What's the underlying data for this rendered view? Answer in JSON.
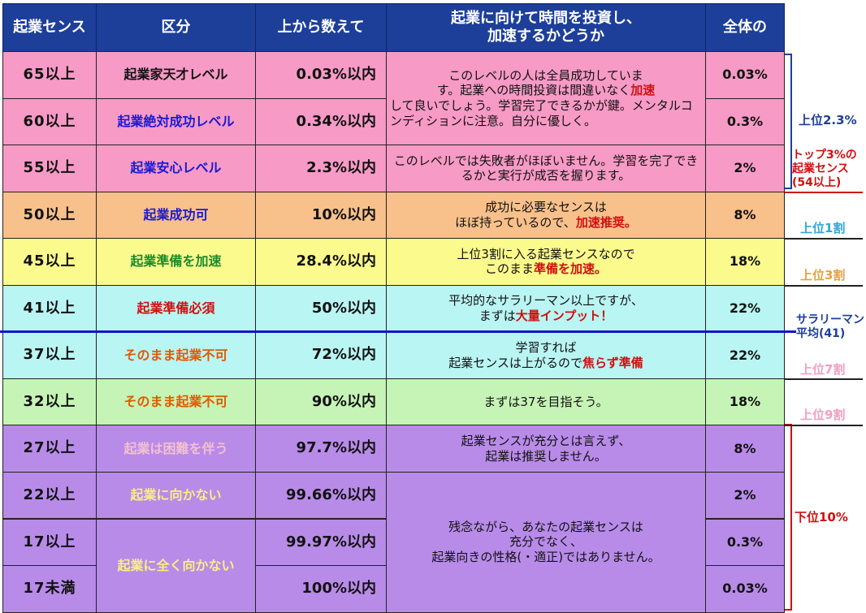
{
  "headers": [
    "起業センス",
    "区分",
    "上から数えて",
    "起業に向けて時間を投資し、\n加速するかどうか",
    "全体の"
  ],
  "rows": [
    {
      "score": "65以上",
      "class": "起業家天才レベル",
      "pct": "0.03%以内",
      "share": "0.03%"
    },
    {
      "score": "60以上",
      "class": "起業絶対成功レベル",
      "pct": "0.34%以内",
      "share": "0.3%"
    },
    {
      "score": "55以上",
      "class": "起業安心レベル",
      "pct": "2.3%以内",
      "share": "2%"
    },
    {
      "score": "50以上",
      "class": "起業成功可",
      "pct": "10%以内",
      "share": "8%"
    },
    {
      "score": "45以上",
      "class": "起業準備を加速",
      "pct": "28.4%以内",
      "share": "18%"
    },
    {
      "score": "41以上",
      "class": "起業準備必須",
      "pct": "50%以内",
      "share": "22%"
    },
    {
      "score": "37以上",
      "class": "そのまま起業不可",
      "pct": "72%以内",
      "share": "22%"
    },
    {
      "score": "32以上",
      "class": "そのまま起業不可",
      "pct": "90%以内",
      "share": "18%"
    },
    {
      "score": "27以上",
      "class": "起業は困難を伴う",
      "pct": "97.7%以内",
      "share": "8%"
    },
    {
      "score": "22以上",
      "class": "起業に向かない",
      "pct": "99.66%以内",
      "share": "2%"
    },
    {
      "score": "17以上",
      "class": "",
      "pct": "99.97%以内",
      "share": "0.3%"
    },
    {
      "score": "17未満",
      "class": "",
      "pct": "100%以内",
      "share": "0.03%"
    }
  ],
  "class_merged_17": "起業に全く向かない",
  "descriptions": {
    "d1a": "このレベルの人は全員成功していま",
    "d1b": "す。起業への時間投資は間違いなく",
    "d1c": "加速",
    "d1d": "して良いでしょう。学習完了できるかが鍵。メンタルコンディションに注意。自分に優しく。",
    "d2": "このレベルでは失敗者がほぼいません。学習を完了できるかと実行が成否を握ります。",
    "d3a": "成功に必要なセンスは",
    "d3b": "ほぼ持っているので、",
    "d3c": "加速推奨。",
    "d4a": "上位3割に入る起業センスなので",
    "d4b": "このまま",
    "d4c": "準備を加速。",
    "d5a": "平均的なサラリーマン以上ですが、",
    "d5b": "まずは",
    "d5c": "大量インプット！",
    "d6a": "学習すれば",
    "d6b": "起業センスは上がるので",
    "d6c": "焦らず準備",
    "d7": "まずは37を目指そう。",
    "d8a": "起業センスが充分とは言えず、",
    "d8b": "起業は推奨しません。",
    "d9a": "残念ながら、あなたの起業センスは",
    "d9b": "充分でなく、",
    "d9c": "起業向きの性格(・適正)ではありません。"
  },
  "side_labels": {
    "top23": "上位2.3%",
    "top3_l1": "トップ3%の",
    "top3_l2": "起業センス",
    "top3_l3": "(54以上)",
    "top1": "上位1割",
    "top3w": "上位3割",
    "avg_l1": "サラリーマン",
    "avg_l2": "平均(41)",
    "top7": "上位7割",
    "top9": "上位9割",
    "bottom10": "下位10%"
  },
  "colors": {
    "pink": "#f79ac6",
    "orange": "#f8c08a",
    "yellow": "#fbfa8c",
    "cyan": "#b9f5f3",
    "green": "#c6f4b6",
    "purple": "#b88be9",
    "header": "#1d3f9a",
    "avg_line": "#1515c8"
  }
}
